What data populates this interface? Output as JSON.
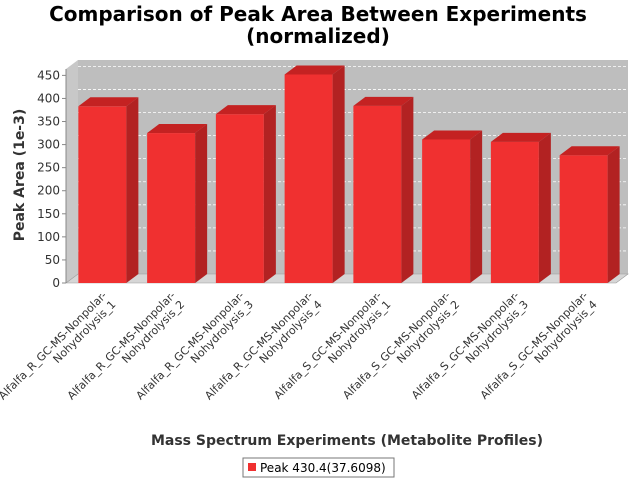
{
  "colors": {
    "bar_front": "#f03030",
    "bar_top": "#c42222",
    "bar_side": "#b22222",
    "plot_back": "#bebebe",
    "plot_floor": "#d6d6d6",
    "plot_wall": "#c8c8c8",
    "grid": "#ffffff"
  },
  "chart_data": {
    "type": "bar",
    "title": "Comparison of Peak Area Between Experiments",
    "subtitle": "(normalized)",
    "xlabel": "Mass Spectrum Experiments (Metabolite Profiles)",
    "ylabel": "Peak Area (1e-3)",
    "ylim": [
      0,
      475
    ],
    "yticks": [
      0,
      50,
      100,
      150,
      200,
      250,
      300,
      350,
      400,
      450
    ],
    "grid": true,
    "legend_position": "bottom",
    "categories": [
      [
        "Alfalfa_R_GC-MS-Nonpolar-",
        "Nohydrolysis_1"
      ],
      [
        "Alfalfa_R_GC-MS-Nonpolar-",
        "Nohydrolysis_2"
      ],
      [
        "Alfalfa_R_GC-MS-Nonpolar-",
        "Nohydrolysis_3"
      ],
      [
        "Alfalfa_R_GC-MS-Nonpolar-",
        "Nohydrolysis_4"
      ],
      [
        "Alfalfa_S_GC-MS-Nonpolar-",
        "Nohydrolysis_1"
      ],
      [
        "Alfalfa_S_GC-MS-Nonpolar-",
        "Nohydrolysis_2"
      ],
      [
        "Alfalfa_S_GC-MS-Nonpolar-",
        "Nohydrolysis_3"
      ],
      [
        "Alfalfa_S_GC-MS-Nonpolar-",
        "Nohydrolysis_4"
      ]
    ],
    "series": [
      {
        "name": "Peak 430.4(37.6098)",
        "values": [
          383,
          325,
          366,
          452,
          384,
          311,
          306,
          277
        ]
      }
    ]
  }
}
